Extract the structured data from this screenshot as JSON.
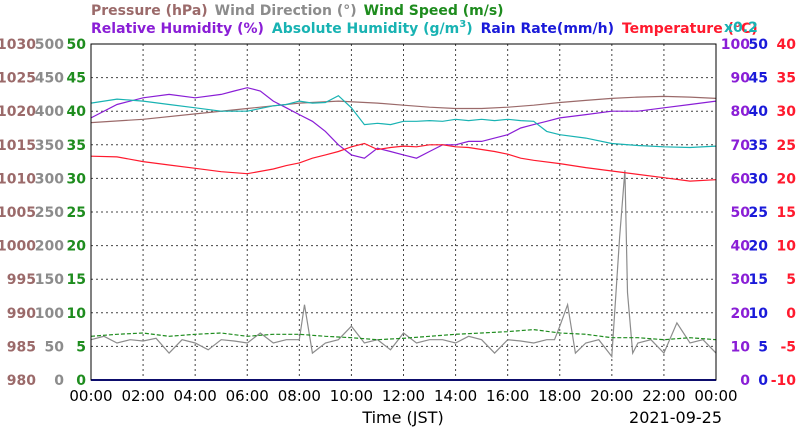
{
  "legend": {
    "row1": [
      {
        "label": "Pressure (hPa)",
        "color": "#9b6a6a"
      },
      {
        "label": "Wind Direction (°)",
        "color": "#8c8c8c"
      },
      {
        "label": "Wind Speed (m/s)",
        "color": "#1e8c1e"
      }
    ],
    "row2": [
      {
        "label": "Relative Humidity (%)",
        "color": "#8a1ed6"
      },
      {
        "label": "Absolute Humidity (g/m",
        "sup": "3",
        "close": ")",
        "color": "#19b3b3"
      },
      {
        "label": "Rain Rate(mm/h)",
        "color": "#1a1ad9"
      },
      {
        "label": "Temperature (°C)",
        "color": "#ff1a2e"
      }
    ],
    "rain_multiplier": "x0.2"
  },
  "axes": {
    "pressure_ticks": [
      "1030",
      "1025",
      "1020",
      "1015",
      "1010",
      "1005",
      "1000",
      "995",
      "990",
      "985",
      "980"
    ],
    "direction_ticks": [
      "500",
      "450",
      "400",
      "350",
      "300",
      "250",
      "200",
      "150",
      "100",
      "50",
      "0"
    ],
    "speed_ticks": [
      "50",
      "45",
      "40",
      "35",
      "30",
      "25",
      "20",
      "15",
      "10",
      "5",
      "0"
    ],
    "humidity_ticks": [
      "100",
      "90",
      "80",
      "70",
      "60",
      "50",
      "40",
      "30",
      "20",
      "10",
      "0"
    ],
    "rain_ticks": [
      "50",
      "45",
      "40",
      "35",
      "30",
      "25",
      "20",
      "15",
      "10",
      "5",
      "0"
    ],
    "temp_ticks": [
      "40",
      "35",
      "30",
      "25",
      "20",
      "15",
      "10",
      "5",
      "0",
      "-5",
      "-10"
    ],
    "x_ticks": [
      "00:00",
      "02:00",
      "04:00",
      "06:00",
      "08:00",
      "10:00",
      "12:00",
      "14:00",
      "16:00",
      "18:00",
      "20:00",
      "22:00",
      "00:00"
    ],
    "xlabel": "Time (JST)",
    "date": "2021-09-25"
  },
  "colors": {
    "pressure": "#9b6a6a",
    "direction": "#8c8c8c",
    "speed": "#1e8c1e",
    "humidity": "#8a1ed6",
    "abs_humidity": "#19b3b3",
    "rain": "#1a1ad9",
    "temperature": "#ff1a2e"
  },
  "chart_data": {
    "type": "line",
    "x_unit": "hours (JST)",
    "xlim": [
      0,
      24
    ],
    "grid": true,
    "series": [
      {
        "name": "Pressure (hPa)",
        "axis": "pressure",
        "ylim": [
          980,
          1030
        ],
        "x": [
          0,
          2,
          4,
          6,
          8,
          9.5,
          11,
          12,
          13,
          14,
          15,
          16,
          17,
          18,
          19,
          20,
          21,
          22,
          23,
          24
        ],
        "y": [
          1018.3,
          1018.8,
          1019.6,
          1020.4,
          1021.2,
          1021.5,
          1021.2,
          1020.9,
          1020.6,
          1020.4,
          1020.4,
          1020.6,
          1020.9,
          1021.3,
          1021.6,
          1021.9,
          1022.1,
          1022.2,
          1022.1,
          1021.9
        ]
      },
      {
        "name": "Wind Direction (°)",
        "axis": "direction",
        "ylim": [
          0,
          500
        ],
        "x": [
          0,
          0.5,
          1,
          1.5,
          2,
          2.5,
          3,
          3.5,
          4,
          4.5,
          5,
          5.5,
          6,
          6.5,
          7,
          7.5,
          8,
          8.2,
          8.5,
          9,
          9.5,
          10,
          10.5,
          11,
          11.5,
          12,
          12.5,
          13,
          13.5,
          14,
          14.5,
          15,
          15.5,
          16,
          16.5,
          17,
          17.5,
          17.8,
          18,
          18.3,
          18.6,
          19,
          19.5,
          20,
          20.3,
          20.5,
          20.6,
          20.8,
          21,
          21.5,
          22,
          22.5,
          23,
          23.5,
          24
        ],
        "y": [
          60,
          65,
          55,
          60,
          58,
          62,
          40,
          60,
          55,
          45,
          60,
          58,
          55,
          70,
          55,
          60,
          60,
          112,
          40,
          55,
          60,
          80,
          55,
          60,
          45,
          70,
          55,
          60,
          60,
          55,
          65,
          60,
          40,
          60,
          58,
          55,
          60,
          60,
          80,
          112,
          40,
          55,
          60,
          35,
          212,
          312,
          130,
          40,
          55,
          60,
          40,
          85,
          55,
          60,
          40
        ]
      },
      {
        "name": "Wind Speed (m/s)",
        "axis": "speed",
        "ylim": [
          0,
          50
        ],
        "x": [
          0,
          1,
          2,
          3,
          4,
          5,
          6,
          7,
          8,
          9,
          10,
          11,
          12,
          13,
          14,
          15,
          16,
          17,
          18,
          19,
          20,
          21,
          22,
          23,
          24
        ],
        "y": [
          6.5,
          6.8,
          7,
          6.5,
          6.8,
          7,
          6.5,
          6.8,
          6.8,
          6.5,
          6.3,
          6,
          6.2,
          6.5,
          6.8,
          7,
          7.2,
          7.5,
          7,
          6.8,
          6.3,
          6.3,
          6,
          6.3,
          6
        ]
      },
      {
        "name": "Relative Humidity (%)",
        "axis": "humidity",
        "ylim": [
          0,
          100
        ],
        "x": [
          0,
          1,
          2,
          3,
          4,
          5,
          5.5,
          6,
          6.5,
          7,
          7.5,
          8,
          8.5,
          9,
          9.5,
          10,
          10.5,
          11,
          11.5,
          12,
          12.5,
          13,
          13.5,
          14,
          14.5,
          15,
          15.5,
          16,
          16.5,
          17,
          17.5,
          18,
          19,
          20,
          21,
          22,
          23,
          24
        ],
        "y": [
          78,
          82,
          84,
          85,
          84,
          85,
          86,
          87,
          86,
          83,
          81,
          79,
          77,
          74,
          70,
          67,
          66,
          69,
          68,
          67,
          66,
          68,
          70,
          70,
          71,
          71,
          72,
          73,
          75,
          76,
          77,
          78,
          79,
          80,
          80,
          81,
          82,
          83
        ]
      },
      {
        "name": "Absolute Humidity (g/m3)",
        "axis": "speed",
        "ylim": [
          0,
          50
        ],
        "x": [
          0,
          1,
          2,
          3,
          4,
          5,
          6,
          7,
          7.5,
          8,
          8.5,
          9,
          9.5,
          10,
          10.5,
          11,
          11.5,
          12,
          12.5,
          13,
          13.5,
          14,
          14.5,
          15,
          15.5,
          16,
          16.5,
          17,
          17.5,
          18,
          19,
          20,
          21,
          22,
          23,
          24
        ],
        "y": [
          41.2,
          41.8,
          41.5,
          41,
          40.5,
          40,
          40,
          40.8,
          41,
          41.5,
          41.2,
          41.3,
          42.3,
          40.5,
          38,
          38.2,
          38,
          38.5,
          38.5,
          38.6,
          38.5,
          38.8,
          38.6,
          38.8,
          38.6,
          38.8,
          38.6,
          38.5,
          37,
          36.5,
          36,
          35.2,
          34.9,
          34.7,
          34.6,
          34.8
        ]
      },
      {
        "name": "Rain Rate(mm/h)",
        "axis": "rain",
        "ylim": [
          0,
          50
        ],
        "x": [
          0,
          24
        ],
        "y": [
          0,
          0
        ]
      },
      {
        "name": "Temperature (°C)",
        "axis": "temp",
        "ylim": [
          -10,
          40
        ],
        "x": [
          0,
          1,
          2,
          3,
          4,
          5,
          6,
          7,
          7.5,
          8,
          8.5,
          9,
          9.5,
          10,
          10.5,
          11,
          11.5,
          12,
          12.5,
          13,
          13.5,
          14,
          14.5,
          15,
          15.5,
          16,
          16.5,
          17,
          18,
          19,
          20,
          21,
          22,
          23,
          24
        ],
        "y": [
          23.3,
          23.2,
          22.5,
          22,
          21.5,
          21,
          20.7,
          21.4,
          21.9,
          22.3,
          23,
          23.5,
          24,
          24.7,
          25.2,
          24.3,
          24.6,
          24.8,
          24.7,
          25,
          25,
          24.7,
          24.6,
          24.3,
          24,
          23.6,
          23,
          22.7,
          22.2,
          21.6,
          21.1,
          20.6,
          20.1,
          19.6,
          19.8
        ]
      }
    ]
  }
}
